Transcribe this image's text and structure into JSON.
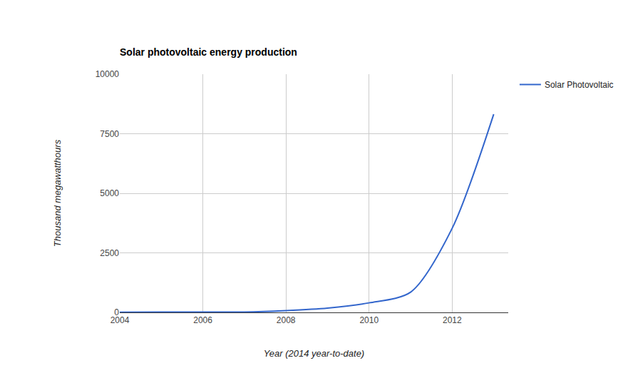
{
  "chart_data": {
    "type": "line",
    "title": "Solar photovoltaic energy production",
    "x_label": "Year (2014 year-to-date)",
    "y_label": "Thousand megawatthours",
    "x": [
      2004,
      2005,
      2006,
      2007,
      2008,
      2009,
      2010,
      2011,
      2012,
      2013
    ],
    "series": [
      {
        "name": "Solar Photovoltaic",
        "color": "#3366cc",
        "values": [
          6,
          16,
          15,
          16,
          76,
          180,
          400,
          850,
          3530,
          8320
        ]
      }
    ],
    "xlim": [
      2004,
      2013.35
    ],
    "xticks": [
      2004,
      2006,
      2008,
      2010,
      2012
    ],
    "ylim": [
      0,
      10000
    ],
    "yticks": [
      0,
      2500,
      5000,
      7500,
      10000
    ],
    "grid": true,
    "legend": "right"
  }
}
